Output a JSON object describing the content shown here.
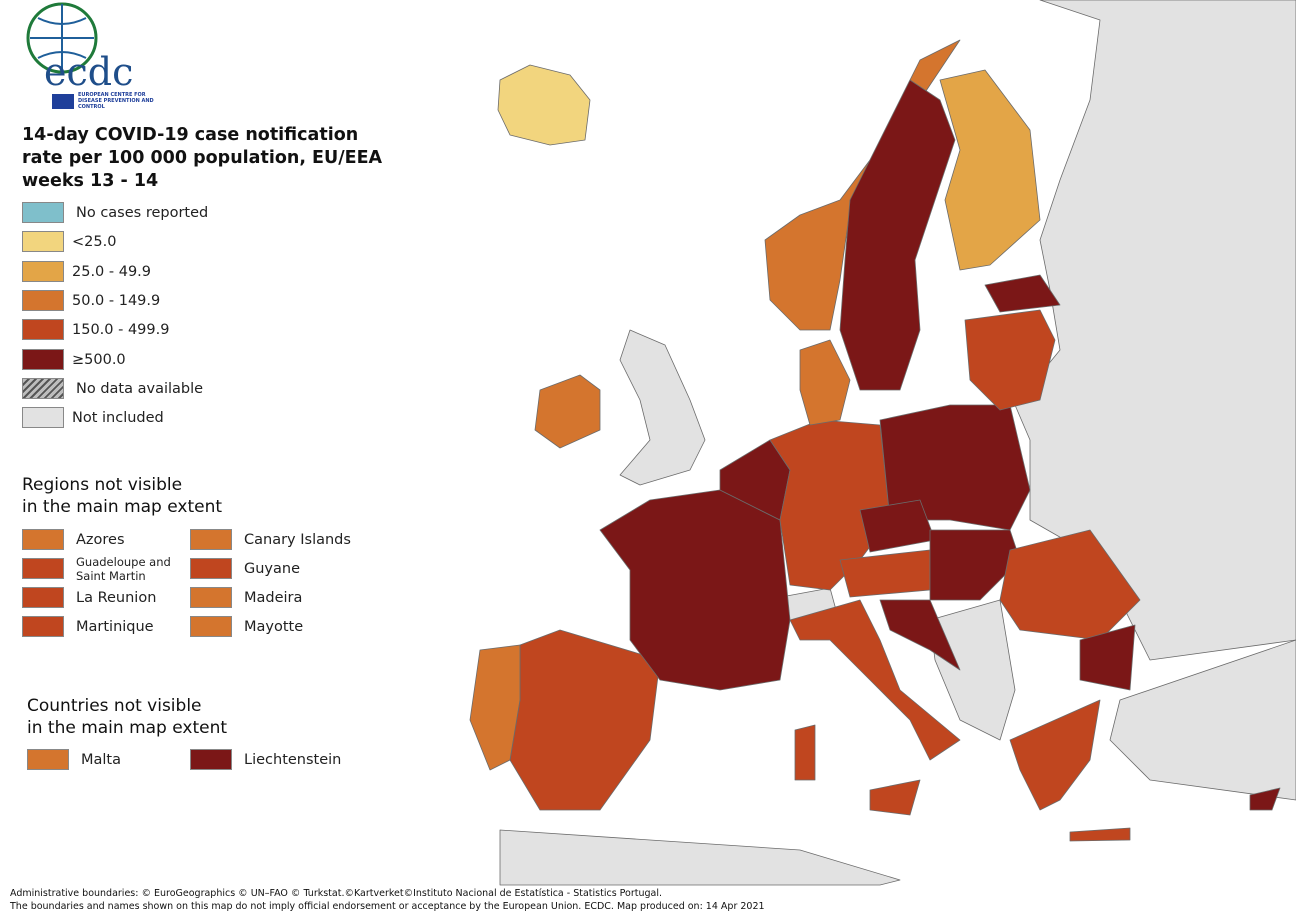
{
  "logo": {
    "text": "ecdc",
    "subtitle": "EUROPEAN CENTRE FOR DISEASE PREVENTION AND CONTROL"
  },
  "title": [
    "14-day COVID-19 case notification",
    "rate per 100 000 population, EU/EEA",
    "weeks 13 - 14"
  ],
  "legend": {
    "items": [
      {
        "label": "No cases reported",
        "color": "#7fbfcb"
      },
      {
        "label": "<25.0",
        "color": "#f2d57e"
      },
      {
        "label": "25.0 - 49.9",
        "color": "#e3a547"
      },
      {
        "label": "50.0 - 149.9",
        "color": "#d4752e"
      },
      {
        "label": "150.0 - 499.9",
        "color": "#c0461f"
      },
      {
        "label": "≥500.0",
        "color": "#7b1717"
      },
      {
        "label": "No data available",
        "color": "#bdbdbd",
        "pattern": "hatch"
      },
      {
        "label": "Not included",
        "color": "#e2e2e2"
      }
    ]
  },
  "regions": {
    "heading": [
      "Regions not visible",
      "in the main map extent"
    ],
    "items": [
      {
        "label": "Azores",
        "color": "#d4752e"
      },
      {
        "label": "Canary Islands",
        "color": "#d4752e"
      },
      {
        "label": "Guadeloupe and Saint Martin",
        "color": "#c0461f"
      },
      {
        "label": "Guyane",
        "color": "#c0461f"
      },
      {
        "label": "La Reunion",
        "color": "#c0461f"
      },
      {
        "label": "Madeira",
        "color": "#d4752e"
      },
      {
        "label": "Martinique",
        "color": "#c0461f"
      },
      {
        "label": "Mayotte",
        "color": "#d4752e"
      }
    ]
  },
  "countries": {
    "heading": [
      "Countries not visible",
      "in the main map extent"
    ],
    "items": [
      {
        "label": "Malta",
        "color": "#d4752e"
      },
      {
        "label": "Liechtenstein",
        "color": "#7b1717"
      }
    ]
  },
  "footer": [
    "Administrative boundaries: © EuroGeographics © UN–FAO © Turkstat.©Kartverket©Instituto Nacional de Estatística - Statistics Portugal.",
    "The boundaries and names shown on this map do not imply official endorsement or acceptance by the European Union. ECDC. Map produced on: 14 Apr 2021"
  ]
}
